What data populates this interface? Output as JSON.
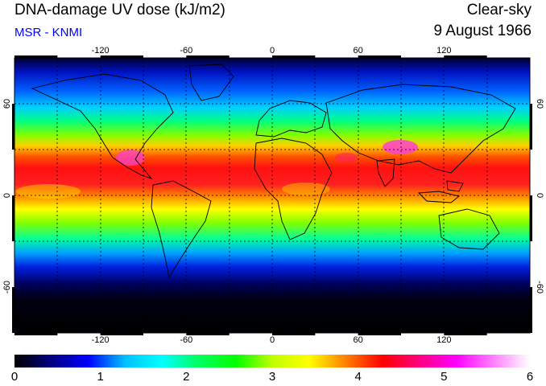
{
  "header": {
    "title": "DNA-damage UV dose (kJ/m2)",
    "credit": "MSR - KNMI",
    "sky_condition": "Clear-sky",
    "date": "9 August 1966"
  },
  "map": {
    "lon_ticks": [
      "-120",
      "-60",
      "0",
      "60",
      "120"
    ],
    "lat_ticks": [
      "60",
      "0",
      "-60"
    ],
    "lon_range": [
      -180,
      180
    ],
    "lat_range": [
      -90,
      90
    ],
    "grid": "dotted every 30 degrees",
    "colors": {
      "low": "#000000",
      "mid_low": "#0000ff",
      "mid": "#00ff00",
      "high": "#ff0000",
      "peak": "#ff00ff"
    }
  },
  "colorbar": {
    "labels": [
      "0",
      "1",
      "2",
      "3",
      "4",
      "5",
      "6"
    ],
    "range": [
      0,
      6
    ],
    "stops": [
      "#000000",
      "#000080",
      "#0000ff",
      "#00c0ff",
      "#00ffff",
      "#00ff60",
      "#00ff00",
      "#c0ff00",
      "#ffff00",
      "#ff8000",
      "#ff0000",
      "#ff0080",
      "#ff00ff",
      "#ff80ff",
      "#ffffff"
    ]
  }
}
